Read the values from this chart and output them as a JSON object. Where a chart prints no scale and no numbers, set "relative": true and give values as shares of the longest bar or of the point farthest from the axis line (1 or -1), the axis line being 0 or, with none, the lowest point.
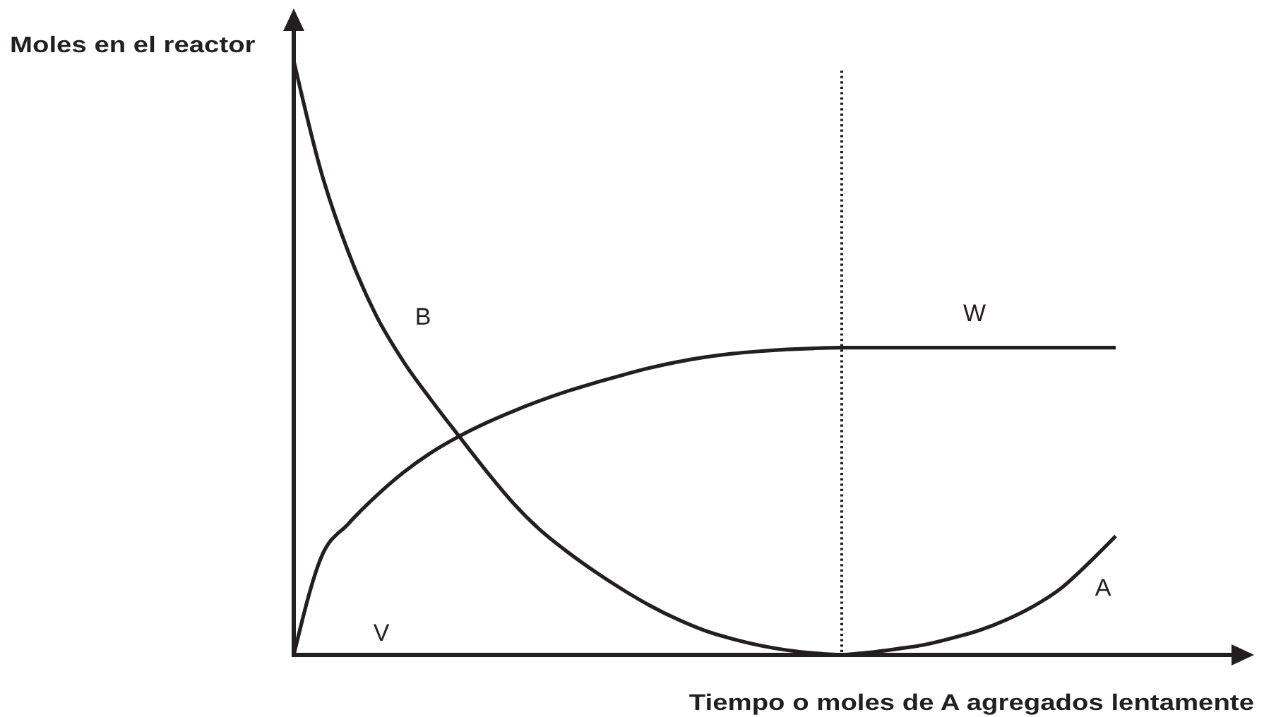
{
  "chart_data": {
    "type": "line",
    "relative": true,
    "ylabel": "Moles en el reactor",
    "xlabel": "Tiempo o moles de A agregados lentamente",
    "categories": [
      null,
      null,
      null,
      null,
      null,
      null,
      null,
      null,
      null,
      null,
      null,
      null,
      null,
      null,
      null,
      null,
      null,
      null,
      null,
      null,
      null,
      null,
      null,
      null,
      null,
      null,
      null,
      null,
      null,
      null,
      null
    ],
    "series": [
      {
        "name": "B",
        "color": "#231f20",
        "values": [
          1,
          0.813,
          0.677,
          0.572,
          0.494,
          0.43,
          0.37,
          0.311,
          0.256,
          0.21,
          0.173,
          0.14,
          0.11,
          0.083,
          0.06,
          0.041,
          0.027,
          0.016,
          0.008,
          0.003,
          0,
          null,
          null,
          null,
          null,
          null,
          null,
          null,
          null,
          null,
          null
        ]
      },
      {
        "name": "W",
        "color": "#231f20",
        "values": [
          0,
          0.164,
          0.221,
          0.267,
          0.307,
          0.34,
          0.367,
          0.39,
          0.41,
          0.428,
          0.444,
          0.458,
          0.471,
          0.483,
          0.493,
          0.501,
          0.507,
          0.511,
          0.514,
          0.516,
          0.517,
          0.517,
          0.517,
          0.517,
          0.517,
          0.517,
          0.517,
          0.517,
          0.517,
          0.517,
          0.517
        ]
      },
      {
        "name": "A",
        "color": "#231f20",
        "values": [
          null,
          null,
          null,
          null,
          null,
          null,
          null,
          null,
          null,
          null,
          null,
          null,
          null,
          null,
          null,
          null,
          null,
          null,
          null,
          null,
          0,
          0.004,
          0.01,
          0.017,
          0.028,
          0.041,
          0.059,
          0.082,
          0.112,
          0.154,
          0.2
        ]
      }
    ],
    "annotations": [
      "V"
    ]
  }
}
